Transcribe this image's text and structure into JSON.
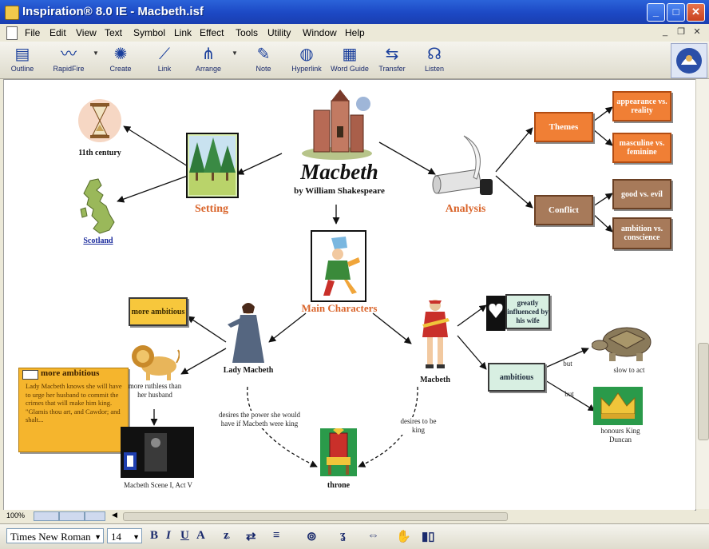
{
  "window": {
    "title": "Inspiration® 8.0 IE - Macbeth.isf"
  },
  "menu": [
    "File",
    "Edit",
    "View",
    "Text",
    "Symbol",
    "Link",
    "Effect",
    "Tools",
    "Utility",
    "Window",
    "Help"
  ],
  "toolbar": {
    "outline": "Outline",
    "rapidfire": "RapidFire",
    "create": "Create",
    "link": "Link",
    "arrange": "Arrange",
    "note": "Note",
    "hyperlink": "Hyperlink",
    "word_guide": "Word Guide",
    "transfer": "Transfer",
    "listen": "Listen"
  },
  "diagram": {
    "main_title": "Macbeth",
    "main_subtitle": "by William Shakespeare",
    "century": "11th century",
    "setting": "Setting",
    "scotland": "Scotland",
    "analysis": "Analysis",
    "themes": "Themes",
    "appearance": "appearance vs. reality",
    "masculine": "masculine vs. feminine",
    "conflict": "Conflict",
    "good_evil": "good vs. evil",
    "ambition_conscience": "ambition vs. conscience",
    "main_characters": "Main Characters",
    "more_ambitious_box": "more ambitious",
    "lady_macbeth": "Lady Macbeth",
    "macbeth_char": "Macbeth",
    "more_ruthless": "more ruthless than her husband",
    "desires_lady": "desires the power she would have if Macbeth were king",
    "desires_macbeth": "desires to be king",
    "throne": "throne",
    "macbeth_scene": "Macbeth Scene I, Act V",
    "greatly_influenced": "greatly influenced by his wife",
    "ambitious": "ambitious",
    "but1": "but",
    "but2": "but",
    "slow_to_act": "slow to act",
    "honours_king": "honours King Duncan",
    "note_title": "more ambitious",
    "note_text": "Lady Macbeth knows she will have to urge her husband to commit the crimes that will make him king. \"Glamis thou art, and Cawdor; and shalt..."
  },
  "status": {
    "zoom": "100%"
  },
  "format": {
    "font": "Times New Roman",
    "size": "14"
  },
  "colors": {
    "title_blue": "#1c48c4",
    "topic_orange": "#f07f35",
    "topic_brown": "#a77a5a",
    "label_orange": "#d9642a"
  }
}
